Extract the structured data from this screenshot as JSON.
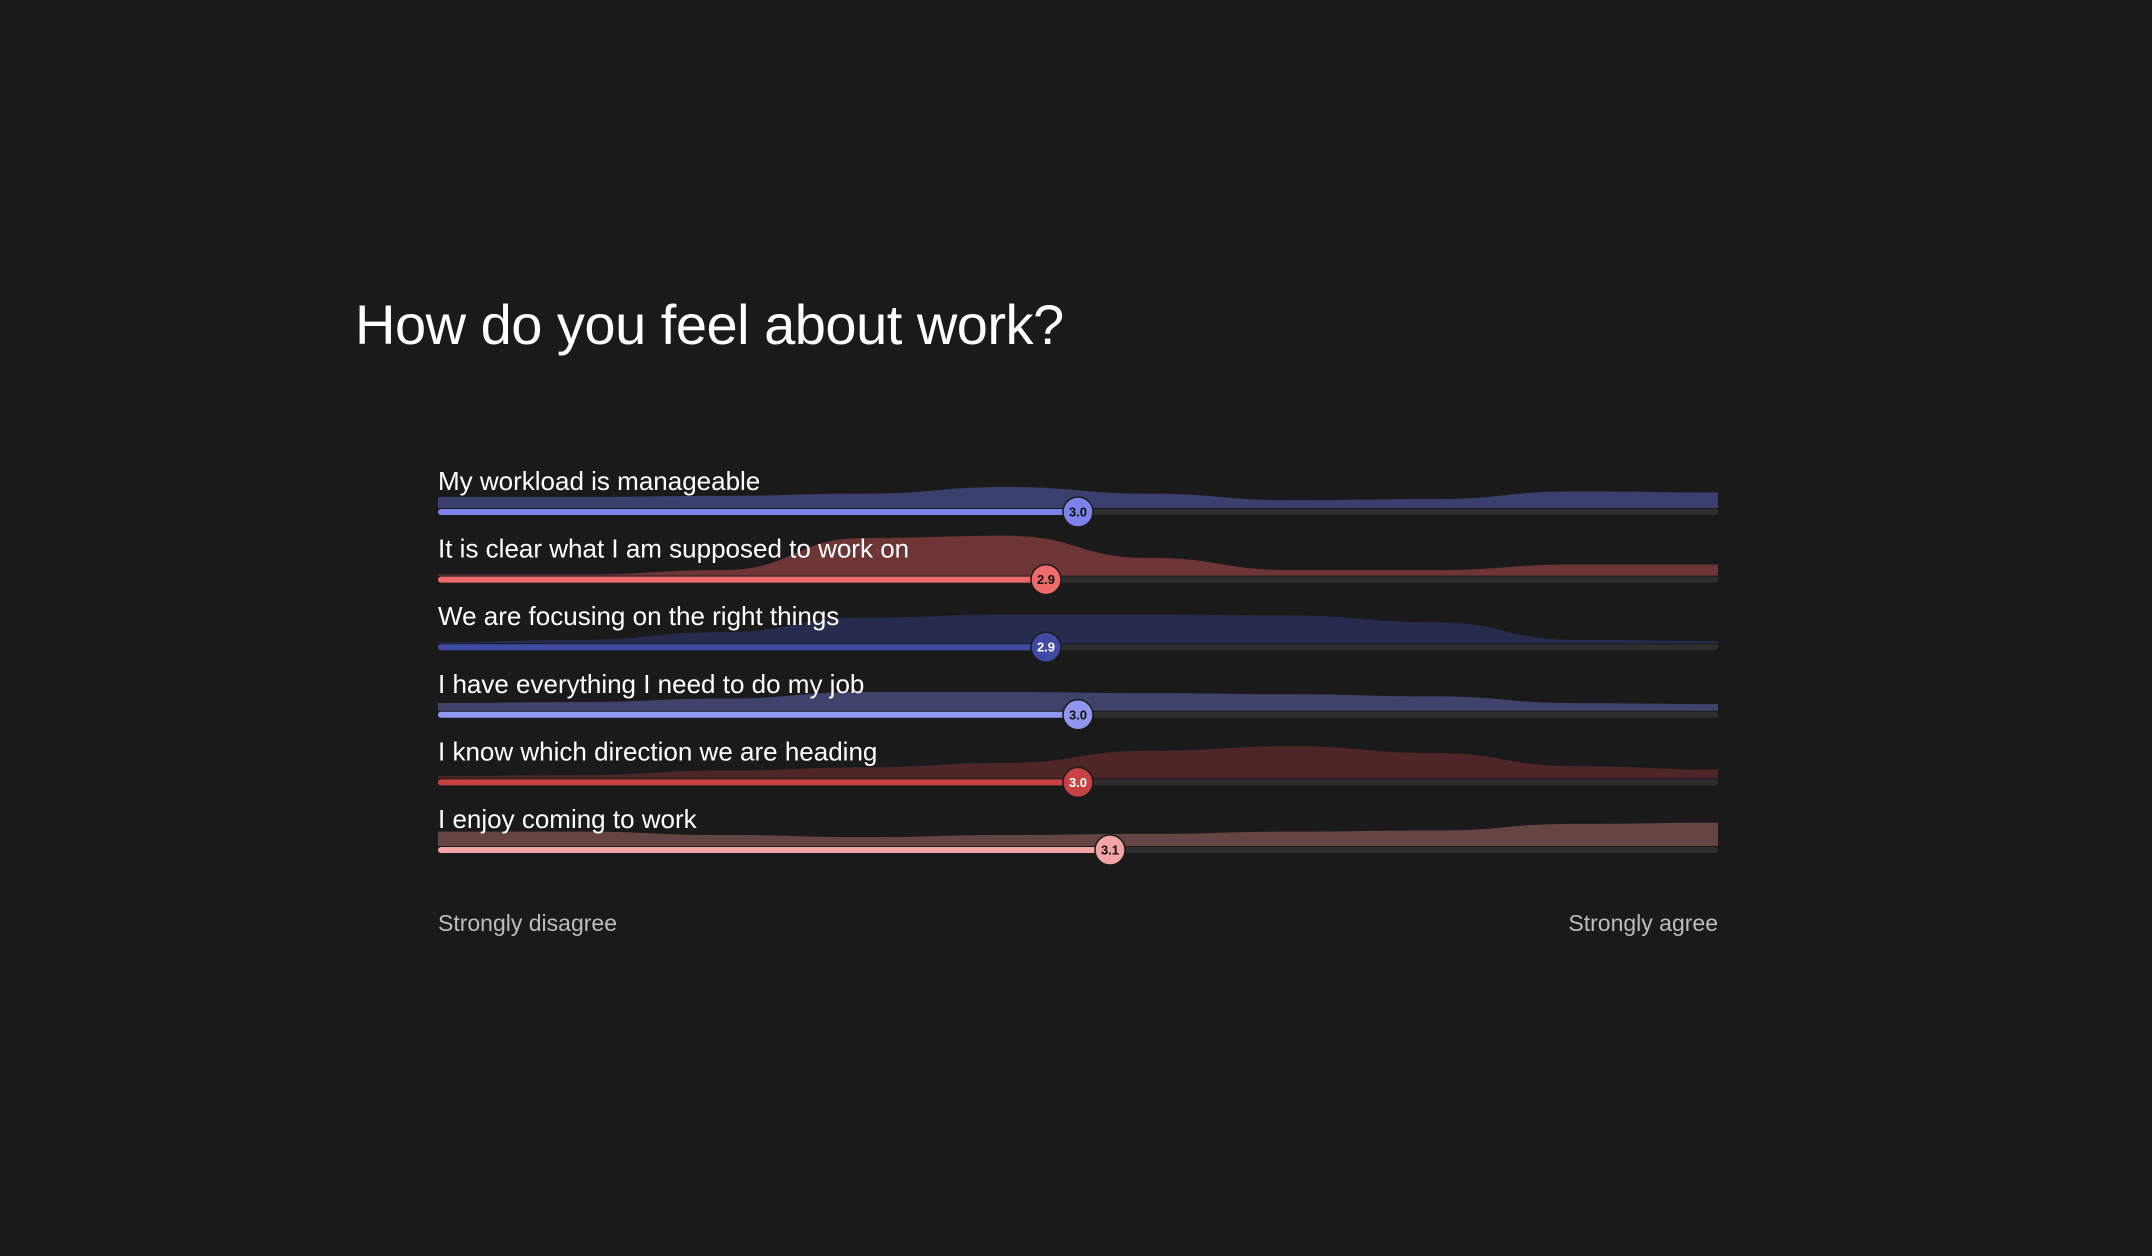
{
  "title": "How do you feel about work?",
  "chart_data": {
    "type": "ridge-slider",
    "title": "How do you feel about work?",
    "scale": {
      "min": 1,
      "max": 5,
      "min_label": "Strongly disagree",
      "max_label": "Strongly agree"
    },
    "items": [
      {
        "label": "My workload is manageable",
        "value": 3.0,
        "value_label": "3.0",
        "color": "#7b82e8",
        "fill": "#3a3f6e",
        "text_color": "#111111",
        "distribution": [
          1.0,
          1.0,
          1.1,
          1.3,
          1.9,
          1.3,
          0.7,
          0.8,
          1.5,
          1.4
        ]
      },
      {
        "label": "It is clear what I am supposed to work on",
        "value": 2.9,
        "value_label": "2.9",
        "color": "#f06a6a",
        "fill": "#6e3537",
        "text_color": "#111111",
        "distribution": [
          0.1,
          0.1,
          0.5,
          3.4,
          3.6,
          1.6,
          0.5,
          0.5,
          1.0,
          1.0
        ]
      },
      {
        "label": "We are focusing on the right things",
        "value": 2.9,
        "value_label": "2.9",
        "color": "#3e4aa3",
        "fill": "#272c4f",
        "text_color": "#ffffff",
        "distribution": [
          0.1,
          0.3,
          1.0,
          2.3,
          2.6,
          2.6,
          2.5,
          1.9,
          0.3,
          0.2
        ]
      },
      {
        "label": "I have everything I need to do my job",
        "value": 3.0,
        "value_label": "3.0",
        "color": "#9097ee",
        "fill": "#3f426a",
        "text_color": "#111111",
        "distribution": [
          0.7,
          0.8,
          1.1,
          1.7,
          1.7,
          1.6,
          1.5,
          1.3,
          0.7,
          0.6
        ]
      },
      {
        "label": "I know which direction we are heading",
        "value": 3.0,
        "value_label": "3.0",
        "color": "#c84244",
        "fill": "#4e2628",
        "text_color": "#ffffff",
        "distribution": [
          0.2,
          0.3,
          0.7,
          1.0,
          1.4,
          2.5,
          2.9,
          2.3,
          1.1,
          0.8
        ]
      },
      {
        "label": "I enjoy coming to work",
        "value": 3.1,
        "value_label": "3.1",
        "color": "#f4a4a4",
        "fill": "#654444",
        "text_color": "#111111",
        "distribution": [
          1.3,
          1.3,
          1.0,
          0.8,
          1.0,
          1.1,
          1.3,
          1.4,
          2.0,
          2.1
        ]
      }
    ]
  }
}
